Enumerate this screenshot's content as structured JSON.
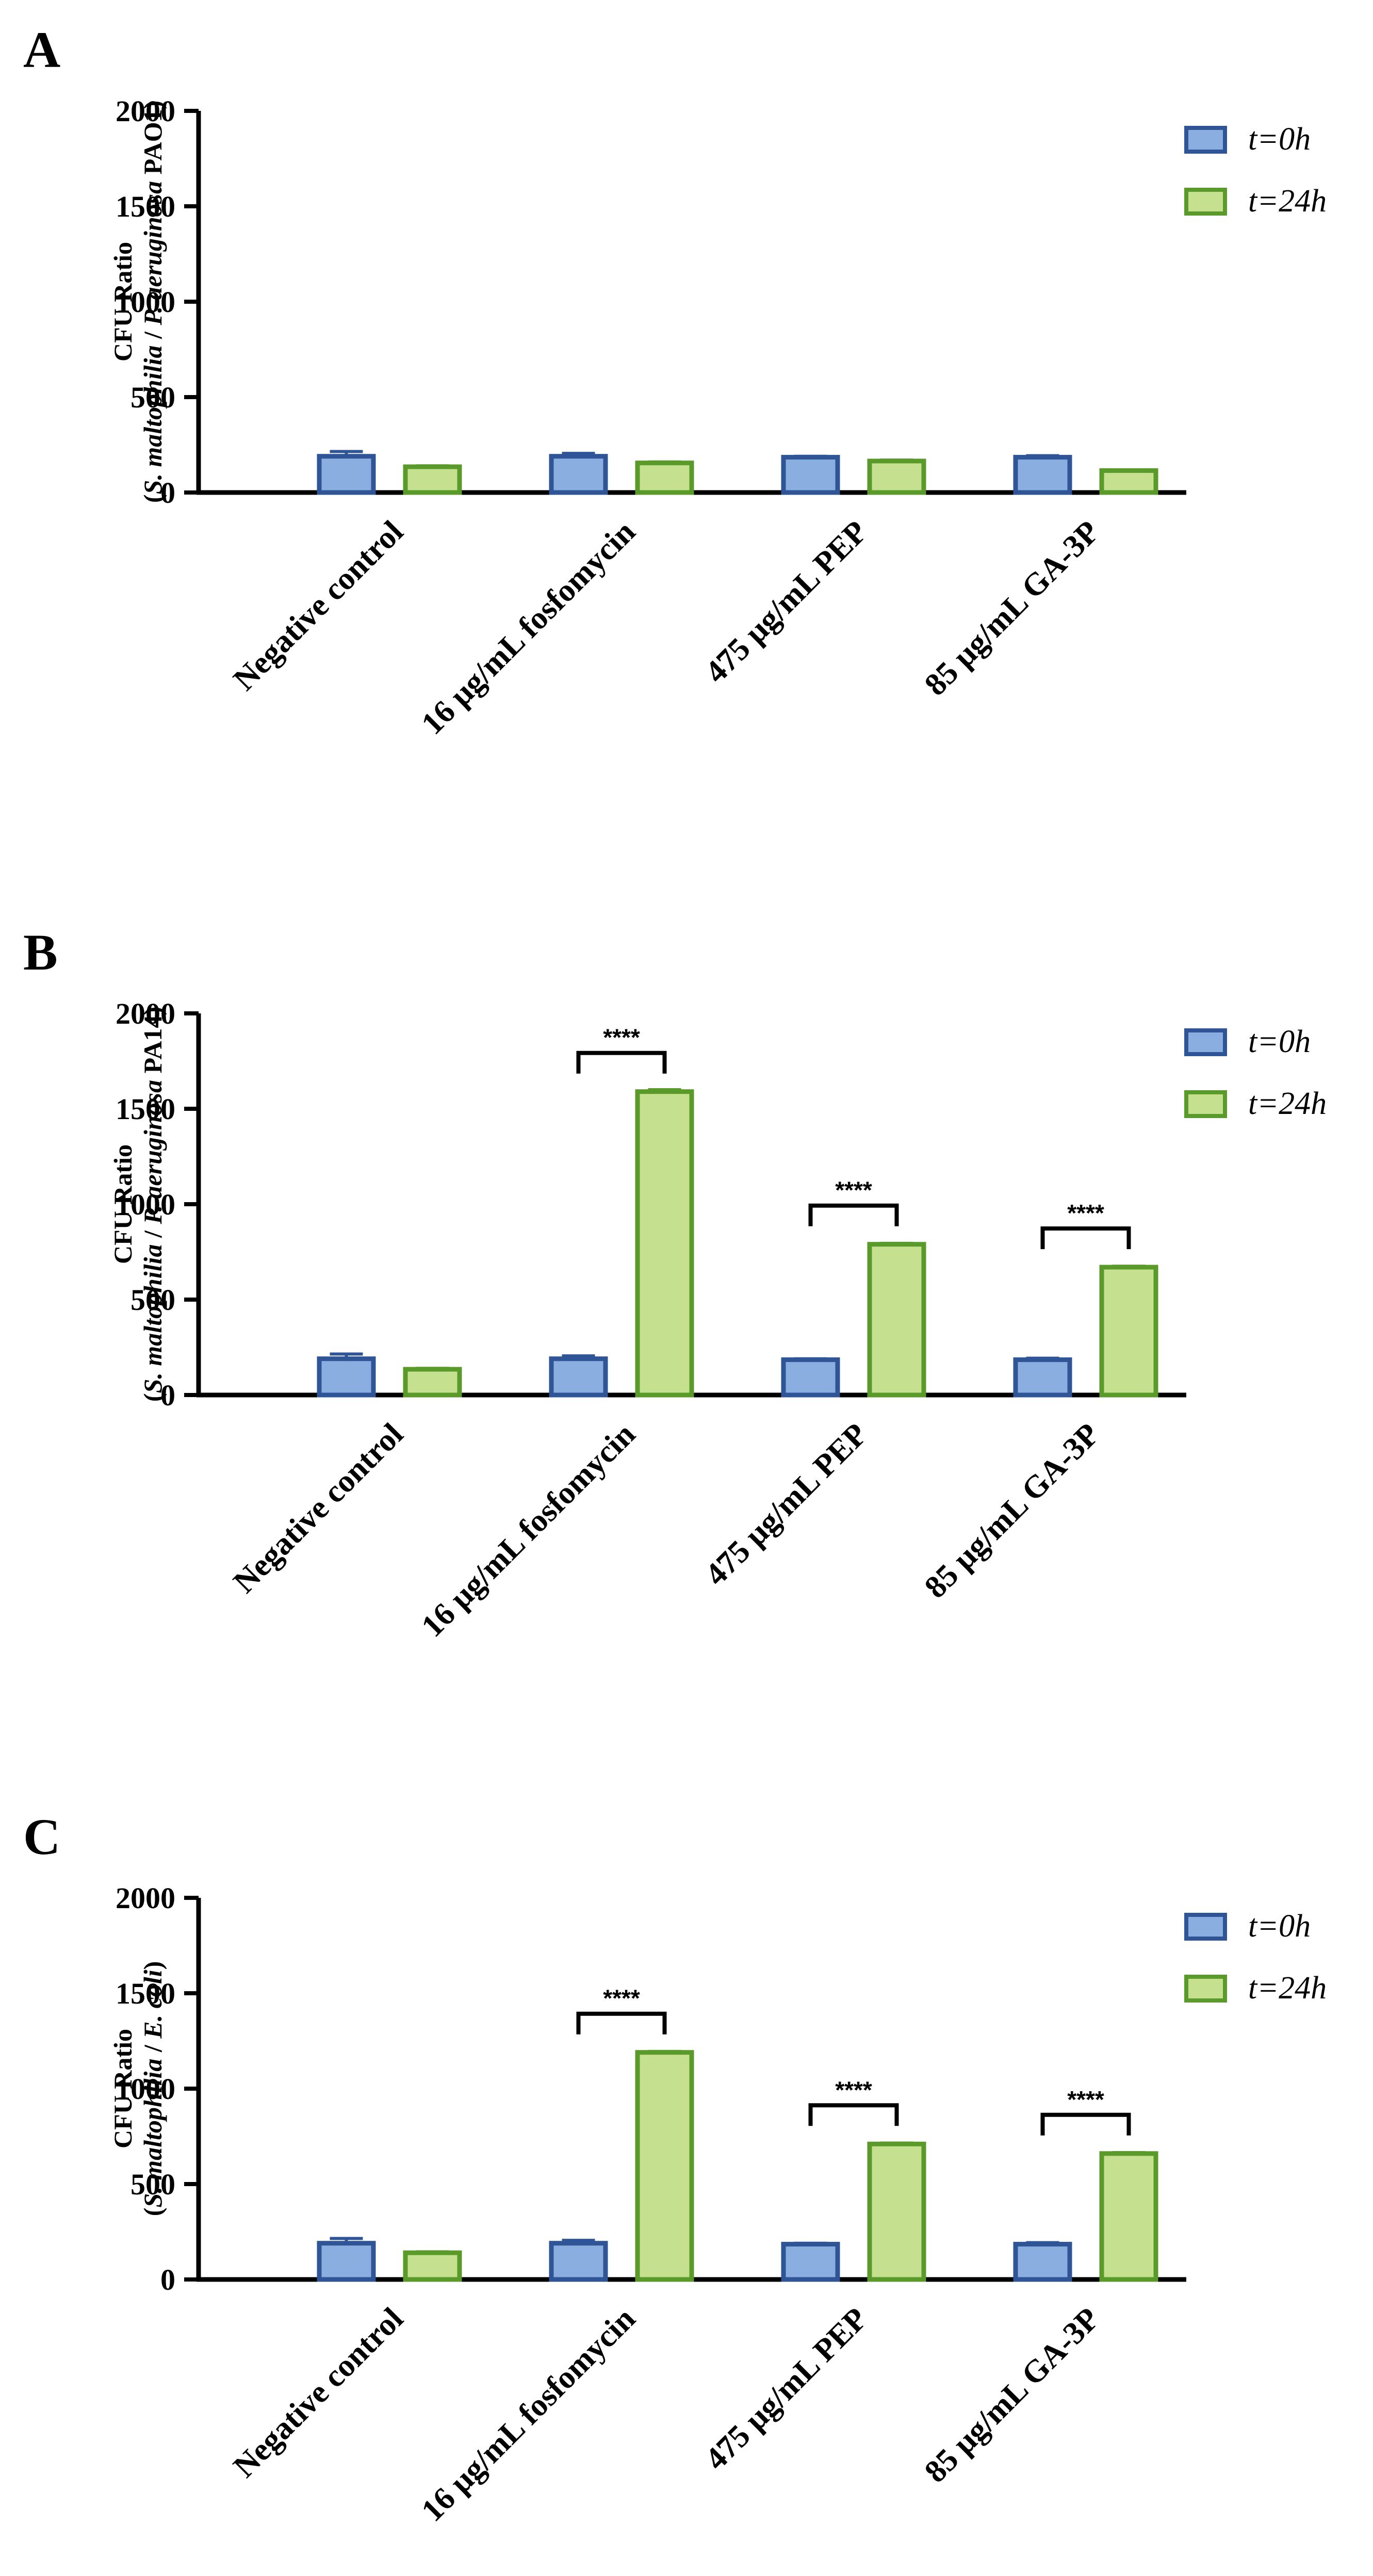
{
  "colors": {
    "t0_fill": "#8aaee0",
    "t0_stroke": "#2f5597",
    "t24_fill": "#c5e08e",
    "t24_stroke": "#5a9a2a",
    "axis": "#000000"
  },
  "legend": {
    "t0": "t=0h",
    "t24": "t=24h"
  },
  "chart_data": [
    {
      "panel": "A",
      "type": "bar",
      "categories": [
        "Negative control",
        "16 μg/mL fosfomycin",
        "475 μg/mL PEP",
        "85 μg/mL GA-3P"
      ],
      "series": [
        {
          "name": "t=0h",
          "values": [
            190,
            190,
            185,
            185
          ],
          "errors": [
            25,
            15,
            5,
            8
          ]
        },
        {
          "name": "t=24h",
          "values": [
            135,
            155,
            165,
            115
          ],
          "errors": [
            5,
            5,
            5,
            3
          ]
        }
      ],
      "significance": [
        "",
        "",
        "",
        ""
      ],
      "ylabel_line1": "CFU Ratio",
      "ylabel_line2": [
        "(",
        "S. maltophilia",
        " / ",
        "P. aeruginosa",
        " PAO1)"
      ],
      "yticks": [
        "0",
        "500",
        "1000",
        "1500",
        "2000"
      ],
      "ylim": [
        0,
        2000
      ]
    },
    {
      "panel": "B",
      "type": "bar",
      "categories": [
        "Negative control",
        "16 μg/mL fosfomycin",
        "475 μg/mL PEP",
        "85 μg/mL GA-3P"
      ],
      "series": [
        {
          "name": "t=0h",
          "values": [
            190,
            190,
            185,
            185
          ],
          "errors": [
            25,
            15,
            5,
            8
          ]
        },
        {
          "name": "t=24h",
          "values": [
            135,
            1590,
            790,
            670
          ],
          "errors": [
            5,
            10,
            5,
            5
          ]
        }
      ],
      "significance": [
        "",
        "****",
        "****",
        "****"
      ],
      "ylabel_line1": "CFU Ratio",
      "ylabel_line2": [
        "(",
        "S. maltophilia",
        " / ",
        "P. aeruginosa",
        " PA14)"
      ],
      "yticks": [
        "0",
        "500",
        "1000",
        "1500",
        "2000"
      ],
      "ylim": [
        0,
        2000
      ]
    },
    {
      "panel": "C",
      "type": "bar",
      "categories": [
        "Negative control",
        "16 μg/mL fosfomycin",
        "475 μg/mL PEP",
        "85 μg/mL GA-3P"
      ],
      "series": [
        {
          "name": "t=0h",
          "values": [
            190,
            190,
            185,
            185
          ],
          "errors": [
            25,
            15,
            5,
            8
          ]
        },
        {
          "name": "t=24h",
          "values": [
            140,
            1190,
            710,
            660
          ],
          "errors": [
            5,
            5,
            5,
            5
          ]
        }
      ],
      "significance": [
        "",
        "****",
        "****",
        "****"
      ],
      "ylabel_line1": "CFU Ratio",
      "ylabel_line2": [
        "(",
        "S. maltophilia",
        " / ",
        "E. coli",
        ")"
      ],
      "yticks": [
        "0",
        "500",
        "1000",
        "1500",
        "2000"
      ],
      "ylim": [
        0,
        2000
      ]
    }
  ]
}
